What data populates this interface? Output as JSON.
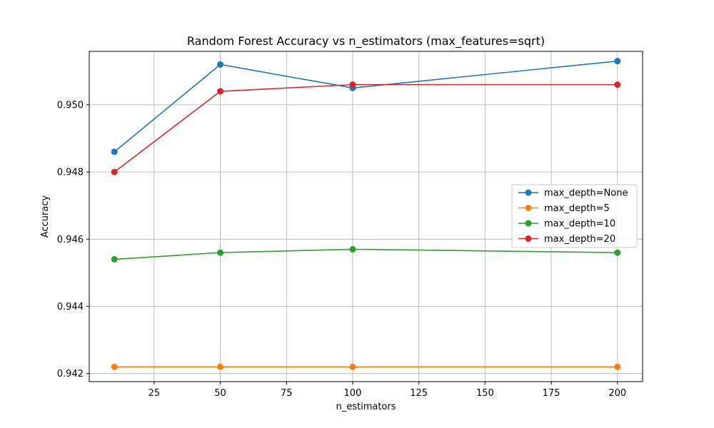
{
  "chart_data": {
    "type": "line",
    "title": "Random Forest Accuracy vs n_estimators (max_features=sqrt)",
    "xlabel": "n_estimators",
    "ylabel": "Accuracy",
    "x": [
      10,
      50,
      100,
      200
    ],
    "xlim": [
      0.5,
      209.5
    ],
    "ylim": [
      0.94176,
      0.95159
    ],
    "xticks": [
      25,
      50,
      75,
      100,
      125,
      150,
      175,
      200
    ],
    "yticks": [
      0.942,
      0.944,
      0.946,
      0.948,
      0.95
    ],
    "ytick_labels": [
      "0.942",
      "0.944",
      "0.946",
      "0.948",
      "0.950"
    ],
    "grid": true,
    "legend_position": "center-right",
    "series": [
      {
        "name": "max_depth=None",
        "color": "#1f77b4",
        "values": [
          0.9486,
          0.9512,
          0.9505,
          0.9513
        ]
      },
      {
        "name": "max_depth=5",
        "color": "#ff7f0e",
        "values": [
          0.9422,
          0.9422,
          0.9422,
          0.9422
        ]
      },
      {
        "name": "max_depth=10",
        "color": "#2ca02c",
        "values": [
          0.9454,
          0.9456,
          0.9457,
          0.9456
        ]
      },
      {
        "name": "max_depth=20",
        "color": "#d62728",
        "values": [
          0.948,
          0.9504,
          0.9506,
          0.9506
        ]
      }
    ]
  }
}
